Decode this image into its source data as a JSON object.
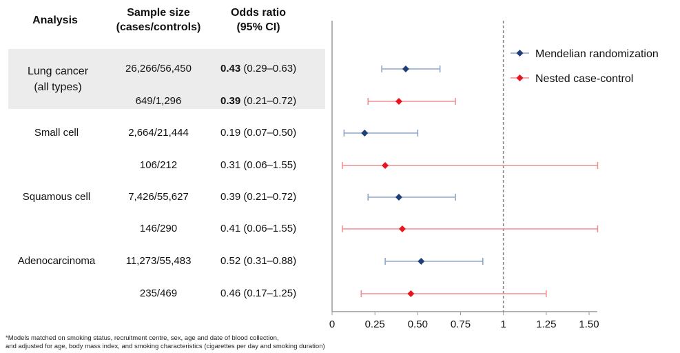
{
  "headers": {
    "analysis": "Analysis",
    "sample_size": [
      "Sample size",
      "(cases/controls)"
    ],
    "odds_ratio": [
      "Odds ratio",
      "(95% CI)"
    ]
  },
  "lung_label": [
    "Lung cancer",
    "(all types)"
  ],
  "rows": [
    {
      "label": "",
      "sample": "26,266/56,450",
      "or": "0.43",
      "ci": "(0.29–0.63)",
      "bold": true
    },
    {
      "label": "",
      "sample": "649/1,296",
      "or": "0.39",
      "ci": "(0.21–0.72)",
      "bold": true
    },
    {
      "label": "Small cell",
      "sample": "2,664/21,444",
      "or": "0.19",
      "ci": "(0.07–0.50)",
      "bold": false
    },
    {
      "label": "",
      "sample": "106/212",
      "or": "0.31",
      "ci": "(0.06–1.55)",
      "bold": false
    },
    {
      "label": "Squamous cell",
      "sample": "7,426/55,627",
      "or": "0.39",
      "ci": "(0.21–0.72)",
      "bold": false
    },
    {
      "label": "",
      "sample": "146/290",
      "or": "0.41",
      "ci": "(0.06–1.55)",
      "bold": false
    },
    {
      "label": "Adenocarcinoma",
      "sample": "11,273/55,483",
      "or": "0.52",
      "ci": "(0.31–0.88)",
      "bold": false
    },
    {
      "label": "",
      "sample": "235/469",
      "or": "0.46",
      "ci": "(0.17–1.25)",
      "bold": false
    }
  ],
  "footnote": [
    "*Models matched on smoking status, recruitment centre, sex, age and date of blood collection,",
    "and adjusted for age, body mass index, and smoking characteristics (cigarettes per day and smoking duration)"
  ],
  "colors": {
    "mr": "#1f3f7a",
    "mr_line": "#8ea6c8",
    "ncc": "#e8141e",
    "ncc_line": "#f08e92",
    "ref_line": "#888888"
  },
  "chart_data": {
    "type": "scatter",
    "subtype": "forest",
    "xlim": [
      0,
      1.5
    ],
    "reference_line": 1,
    "x_ticks": [
      0,
      0.25,
      0.5,
      0.75,
      1,
      1.25,
      1.5
    ],
    "x_tick_labels": [
      "0",
      "0.25",
      "0.50",
      "0.75",
      "1",
      "1.25",
      "1.50"
    ],
    "legend_position": "top-right",
    "series": [
      {
        "name": "Mendelian randomization",
        "color_key": "mr",
        "line_key": "mr_line",
        "marker": "diamond",
        "points": [
          {
            "row": 0,
            "or": 0.43,
            "lo": 0.29,
            "hi": 0.63
          },
          {
            "row": 2,
            "or": 0.19,
            "lo": 0.07,
            "hi": 0.5
          },
          {
            "row": 4,
            "or": 0.39,
            "lo": 0.21,
            "hi": 0.72
          },
          {
            "row": 6,
            "or": 0.52,
            "lo": 0.31,
            "hi": 0.88
          }
        ]
      },
      {
        "name": "Nested case-control",
        "color_key": "ncc",
        "line_key": "ncc_line",
        "marker": "diamond",
        "points": [
          {
            "row": 1,
            "or": 0.39,
            "lo": 0.21,
            "hi": 0.72
          },
          {
            "row": 3,
            "or": 0.31,
            "lo": 0.06,
            "hi": 1.55
          },
          {
            "row": 5,
            "or": 0.41,
            "lo": 0.06,
            "hi": 1.55
          },
          {
            "row": 7,
            "or": 0.46,
            "lo": 0.17,
            "hi": 1.25
          }
        ]
      }
    ]
  }
}
